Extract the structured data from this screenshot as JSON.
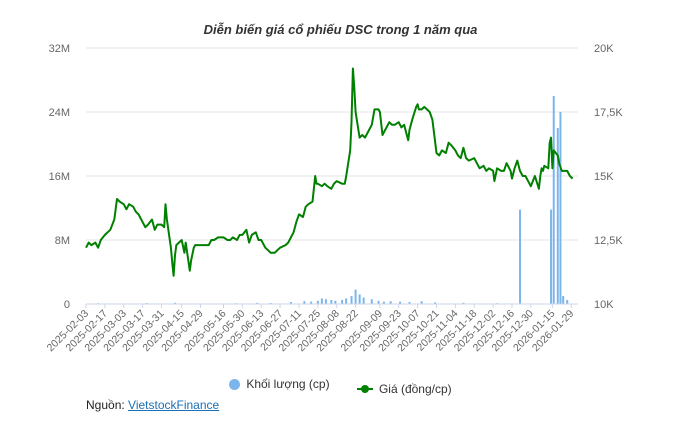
{
  "title": "Diễn biến giá cổ phiếu DSC trong 1 năm qua",
  "source": {
    "label": "Nguồn:",
    "link_text": "VietstockFinance"
  },
  "colors": {
    "price": "#008000",
    "volume": "#7cb5ec",
    "grid": "#e6e6e6",
    "axis_text": "#666666"
  },
  "chart_data": {
    "type": "bar+line",
    "title": "Diễn biến giá cổ phiếu DSC trong 1 năm qua",
    "x_range": [
      "2025-02-03",
      "2026-02-03"
    ],
    "x_ticks": [
      "2025-02-03",
      "2025-02-17",
      "2025-03-03",
      "2025-03-17",
      "2025-03-31",
      "2025-04-15",
      "2025-04-29",
      "2025-05-16",
      "2025-05-30",
      "2025-06-13",
      "2025-06-27",
      "2025-07-11",
      "2025-07-25",
      "2025-08-08",
      "2025-08-22",
      "2025-09-09",
      "2025-09-23",
      "2025-10-07",
      "2025-10-21",
      "2025-11-04",
      "2025-11-18",
      "2025-12-02",
      "2025-12-16",
      "2025-12-30",
      "2026-01-15",
      "2026-01-29"
    ],
    "y_left": {
      "ticks": [
        "0",
        "8M",
        "16M",
        "24M",
        "32M"
      ],
      "values": [
        0,
        8000000,
        16000000,
        24000000,
        32000000
      ],
      "range": [
        0,
        32000000
      ]
    },
    "y_right": {
      "ticks": [
        "10K",
        "12,5K",
        "15K",
        "17,5K",
        "20K"
      ],
      "values": [
        10000,
        12500,
        15000,
        17500,
        20000
      ],
      "range": [
        10000,
        20000
      ]
    },
    "grid": true,
    "legend_position": "bottom",
    "series": [
      {
        "name": "Khối lượng (cp)",
        "kind": "bar",
        "axis": "left",
        "points": [
          [
            "2025-02-12",
            100000
          ],
          [
            "2025-03-20",
            120000
          ],
          [
            "2025-04-10",
            150000
          ],
          [
            "2025-05-25",
            100000
          ],
          [
            "2025-06-10",
            150000
          ],
          [
            "2025-06-20",
            120000
          ],
          [
            "2025-07-05",
            250000
          ],
          [
            "2025-07-15",
            350000
          ],
          [
            "2025-07-20",
            300000
          ],
          [
            "2025-07-25",
            400000
          ],
          [
            "2025-07-28",
            700000
          ],
          [
            "2025-07-31",
            600000
          ],
          [
            "2025-08-04",
            500000
          ],
          [
            "2025-08-07",
            400000
          ],
          [
            "2025-08-12",
            500000
          ],
          [
            "2025-08-15",
            700000
          ],
          [
            "2025-08-19",
            1000000
          ],
          [
            "2025-08-22",
            1800000
          ],
          [
            "2025-08-25",
            1200000
          ],
          [
            "2025-08-28",
            800000
          ],
          [
            "2025-09-03",
            600000
          ],
          [
            "2025-09-08",
            400000
          ],
          [
            "2025-09-12",
            300000
          ],
          [
            "2025-09-17",
            350000
          ],
          [
            "2025-09-24",
            300000
          ],
          [
            "2025-10-01",
            250000
          ],
          [
            "2025-10-10",
            350000
          ],
          [
            "2025-10-20",
            200000
          ],
          [
            "2025-11-10",
            150000
          ],
          [
            "2025-12-05",
            100000
          ],
          [
            "2025-12-22",
            11800000
          ],
          [
            "2026-01-14",
            11800000
          ],
          [
            "2026-01-16",
            26000000
          ],
          [
            "2026-01-19",
            22000000
          ],
          [
            "2026-01-21",
            24000000
          ],
          [
            "2026-01-23",
            1000000
          ],
          [
            "2026-01-26",
            500000
          ]
        ]
      },
      {
        "name": "Giá (đồng/cp)",
        "kind": "line",
        "axis": "right",
        "points": [
          [
            "2025-02-03",
            12200
          ],
          [
            "2025-02-05",
            12400
          ],
          [
            "2025-02-07",
            12300
          ],
          [
            "2025-02-10",
            12400
          ],
          [
            "2025-02-12",
            12200
          ],
          [
            "2025-02-14",
            12500
          ],
          [
            "2025-02-17",
            12700
          ],
          [
            "2025-02-19",
            12800
          ],
          [
            "2025-02-21",
            12900
          ],
          [
            "2025-02-24",
            13300
          ],
          [
            "2025-02-26",
            14100
          ],
          [
            "2025-02-28",
            14000
          ],
          [
            "2025-03-03",
            13900
          ],
          [
            "2025-03-05",
            13700
          ],
          [
            "2025-03-07",
            13900
          ],
          [
            "2025-03-10",
            13800
          ],
          [
            "2025-03-12",
            13600
          ],
          [
            "2025-03-14",
            13500
          ],
          [
            "2025-03-17",
            13200
          ],
          [
            "2025-03-19",
            13000
          ],
          [
            "2025-03-21",
            13100
          ],
          [
            "2025-03-24",
            13300
          ],
          [
            "2025-03-26",
            12900
          ],
          [
            "2025-03-28",
            13100
          ],
          [
            "2025-03-31",
            13100
          ],
          [
            "2025-04-02",
            13000
          ],
          [
            "2025-04-03",
            13900
          ],
          [
            "2025-04-04",
            13300
          ],
          [
            "2025-04-07",
            12200
          ],
          [
            "2025-04-08",
            11600
          ],
          [
            "2025-04-09",
            11100
          ],
          [
            "2025-04-10",
            11900
          ],
          [
            "2025-04-11",
            12300
          ],
          [
            "2025-04-15",
            12500
          ],
          [
            "2025-04-17",
            12000
          ],
          [
            "2025-04-18",
            12400
          ],
          [
            "2025-04-21",
            11300
          ],
          [
            "2025-04-22",
            11700
          ],
          [
            "2025-04-24",
            12200
          ],
          [
            "2025-04-25",
            12300
          ],
          [
            "2025-04-29",
            12300
          ],
          [
            "2025-05-05",
            12300
          ],
          [
            "2025-05-07",
            12500
          ],
          [
            "2025-05-09",
            12500
          ],
          [
            "2025-05-12",
            12600
          ],
          [
            "2025-05-14",
            12600
          ],
          [
            "2025-05-16",
            12600
          ],
          [
            "2025-05-19",
            12500
          ],
          [
            "2025-05-21",
            12500
          ],
          [
            "2025-05-23",
            12600
          ],
          [
            "2025-05-26",
            12500
          ],
          [
            "2025-05-28",
            12700
          ],
          [
            "2025-05-30",
            12700
          ],
          [
            "2025-06-02",
            12900
          ],
          [
            "2025-06-04",
            12400
          ],
          [
            "2025-06-06",
            12700
          ],
          [
            "2025-06-09",
            12800
          ],
          [
            "2025-06-11",
            12500
          ],
          [
            "2025-06-13",
            12500
          ],
          [
            "2025-06-16",
            12200
          ],
          [
            "2025-06-18",
            12100
          ],
          [
            "2025-06-20",
            12000
          ],
          [
            "2025-06-23",
            12000
          ],
          [
            "2025-06-25",
            12100
          ],
          [
            "2025-06-27",
            12200
          ],
          [
            "2025-07-01",
            12300
          ],
          [
            "2025-07-03",
            12400
          ],
          [
            "2025-07-07",
            12800
          ],
          [
            "2025-07-09",
            13200
          ],
          [
            "2025-07-11",
            13500
          ],
          [
            "2025-07-14",
            13400
          ],
          [
            "2025-07-16",
            13800
          ],
          [
            "2025-07-18",
            13900
          ],
          [
            "2025-07-21",
            14000
          ],
          [
            "2025-07-23",
            15000
          ],
          [
            "2025-07-24",
            14700
          ],
          [
            "2025-07-25",
            14700
          ],
          [
            "2025-07-28",
            14600
          ],
          [
            "2025-07-30",
            14700
          ],
          [
            "2025-08-01",
            14600
          ],
          [
            "2025-08-04",
            14500
          ],
          [
            "2025-08-06",
            14700
          ],
          [
            "2025-08-08",
            14800
          ],
          [
            "2025-08-12",
            14700
          ],
          [
            "2025-08-14",
            14700
          ],
          [
            "2025-08-15",
            15000
          ],
          [
            "2025-08-18",
            16000
          ],
          [
            "2025-08-19",
            17100
          ],
          [
            "2025-08-20",
            19200
          ],
          [
            "2025-08-21",
            18500
          ],
          [
            "2025-08-22",
            17500
          ],
          [
            "2025-08-25",
            16500
          ],
          [
            "2025-08-27",
            16600
          ],
          [
            "2025-08-29",
            16500
          ],
          [
            "2025-09-03",
            17000
          ],
          [
            "2025-09-05",
            17600
          ],
          [
            "2025-09-08",
            17600
          ],
          [
            "2025-09-09",
            17500
          ],
          [
            "2025-09-11",
            16600
          ],
          [
            "2025-09-13",
            16800
          ],
          [
            "2025-09-16",
            17100
          ],
          [
            "2025-09-18",
            17000
          ],
          [
            "2025-09-20",
            17000
          ],
          [
            "2025-09-23",
            17100
          ],
          [
            "2025-09-25",
            16900
          ],
          [
            "2025-09-27",
            17000
          ],
          [
            "2025-09-30",
            16400
          ],
          [
            "2025-10-01",
            16800
          ],
          [
            "2025-10-03",
            17200
          ],
          [
            "2025-10-06",
            17700
          ],
          [
            "2025-10-07",
            17800
          ],
          [
            "2025-10-08",
            17600
          ],
          [
            "2025-10-10",
            17600
          ],
          [
            "2025-10-12",
            17700
          ],
          [
            "2025-10-14",
            17600
          ],
          [
            "2025-10-16",
            17500
          ],
          [
            "2025-10-18",
            17200
          ],
          [
            "2025-10-21",
            15900
          ],
          [
            "2025-10-23",
            15800
          ],
          [
            "2025-10-25",
            16000
          ],
          [
            "2025-10-28",
            15900
          ],
          [
            "2025-10-30",
            16300
          ],
          [
            "2025-11-01",
            16200
          ],
          [
            "2025-11-04",
            16000
          ],
          [
            "2025-11-06",
            15800
          ],
          [
            "2025-11-08",
            15700
          ],
          [
            "2025-11-10",
            16100
          ],
          [
            "2025-11-12",
            15700
          ],
          [
            "2025-11-14",
            15600
          ],
          [
            "2025-11-18",
            15700
          ],
          [
            "2025-11-20",
            15500
          ],
          [
            "2025-11-22",
            15300
          ],
          [
            "2025-11-25",
            15400
          ],
          [
            "2025-11-27",
            15200
          ],
          [
            "2025-11-29",
            15300
          ],
          [
            "2025-12-02",
            15200
          ],
          [
            "2025-12-03",
            14800
          ],
          [
            "2025-12-05",
            15300
          ],
          [
            "2025-12-08",
            15200
          ],
          [
            "2025-12-10",
            15200
          ],
          [
            "2025-12-12",
            15500
          ],
          [
            "2025-12-15",
            15200
          ],
          [
            "2025-12-16",
            14900
          ],
          [
            "2025-12-18",
            15300
          ],
          [
            "2025-12-20",
            15600
          ],
          [
            "2025-12-22",
            15200
          ],
          [
            "2025-12-24",
            15000
          ],
          [
            "2025-12-26",
            15000
          ],
          [
            "2025-12-29",
            14700
          ],
          [
            "2025-12-30",
            14600
          ],
          [
            "2026-01-02",
            15000
          ],
          [
            "2026-01-05",
            14500
          ],
          [
            "2026-01-06",
            15000
          ],
          [
            "2026-01-07",
            15300
          ],
          [
            "2026-01-08",
            15200
          ],
          [
            "2026-01-09",
            15400
          ],
          [
            "2026-01-12",
            15300
          ],
          [
            "2026-01-13",
            16300
          ],
          [
            "2026-01-14",
            16500
          ],
          [
            "2026-01-15",
            15300
          ],
          [
            "2026-01-16",
            16000
          ],
          [
            "2026-01-19",
            15800
          ],
          [
            "2026-01-20",
            15500
          ],
          [
            "2026-01-22",
            15200
          ],
          [
            "2026-01-26",
            15200
          ],
          [
            "2026-01-28",
            15000
          ],
          [
            "2026-01-30",
            14900
          ]
        ]
      }
    ]
  }
}
